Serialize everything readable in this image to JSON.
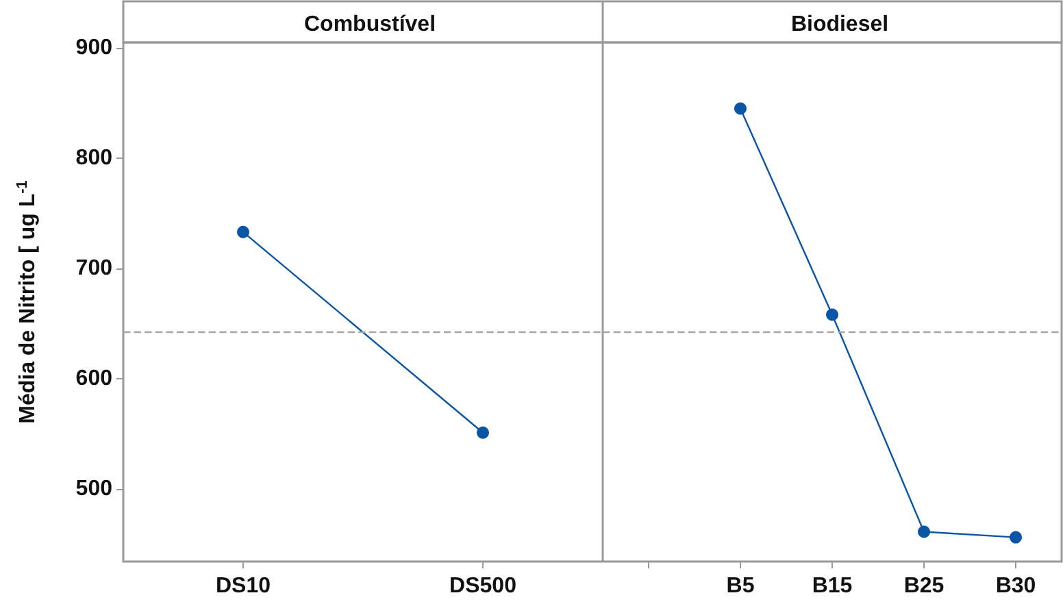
{
  "chart_data": [
    {
      "type": "line",
      "title": "Combustível",
      "ylabel": "Média de Nitrito [ ug L$^{-1}$",
      "categories": [
        "DS10",
        "DS500"
      ],
      "series": [
        {
          "color": "#0b55a5",
          "values": [
            733,
            551
          ]
        }
      ],
      "ylim": [
        434,
        905
      ],
      "yticks": [
        500,
        600,
        700,
        800,
        900
      ],
      "grid": false,
      "marker": "circle",
      "line_style": "solid",
      "ref_lines": [
        {
          "axis": "y",
          "value": 642,
          "color": "#a6a6a6",
          "line_style": "dashed"
        }
      ]
    },
    {
      "type": "line",
      "title": "Biodiesel",
      "categories": [
        null,
        "B5",
        "B15",
        "B25",
        "B30"
      ],
      "series": [
        {
          "color": "#0b55a5",
          "values": [
            null,
            845,
            658,
            461,
            456
          ]
        }
      ],
      "ylim": [
        434,
        905
      ],
      "yticks": [
        500,
        600,
        700,
        800,
        900
      ],
      "tick_labels": "x",
      "grid": false,
      "marker": "circle",
      "line_style": "solid",
      "ref_lines": [
        {
          "axis": "y",
          "value": 642,
          "color": "#a6a6a6",
          "line_style": "dashed"
        }
      ]
    }
  ]
}
